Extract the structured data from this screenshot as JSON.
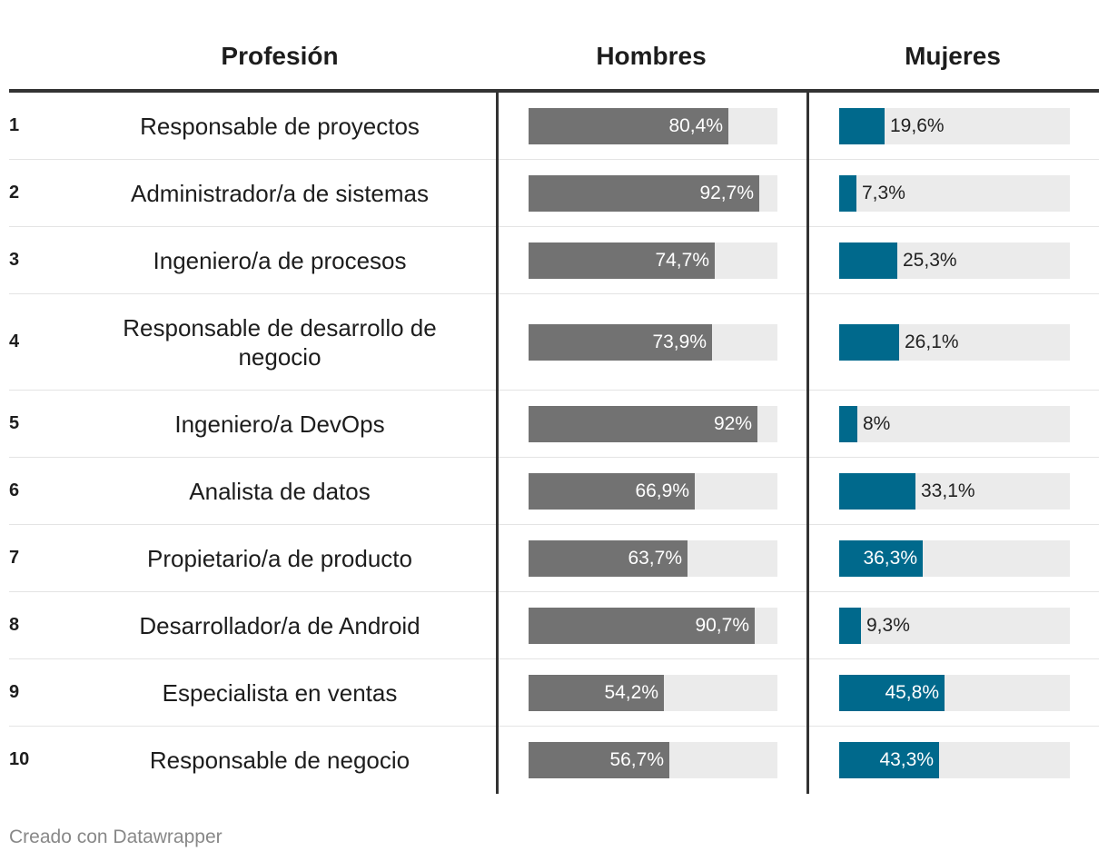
{
  "header": {
    "profession": "Profesión",
    "men": "Hombres",
    "women": "Mujeres"
  },
  "rows": [
    {
      "rank": "1",
      "profession": "Responsable de proyectos",
      "men": "80,4%",
      "women": "19,6%"
    },
    {
      "rank": "2",
      "profession": "Administrador/a de sistemas",
      "men": "92,7%",
      "women": "7,3%"
    },
    {
      "rank": "3",
      "profession": "Ingeniero/a de procesos",
      "men": "74,7%",
      "women": "25,3%"
    },
    {
      "rank": "4",
      "profession": "Responsable de desarrollo de negocio",
      "men": "73,9%",
      "women": "26,1%"
    },
    {
      "rank": "5",
      "profession": "Ingeniero/a DevOps",
      "men": "92%",
      "women": "8%"
    },
    {
      "rank": "6",
      "profession": "Analista de datos",
      "men": "66,9%",
      "women": "33,1%"
    },
    {
      "rank": "7",
      "profession": "Propietario/a de producto",
      "men": "63,7%",
      "women": "36,3%"
    },
    {
      "rank": "8",
      "profession": "Desarrollador/a de Android",
      "men": "90,7%",
      "women": "9,3%"
    },
    {
      "rank": "9",
      "profession": "Especialista en ventas",
      "men": "54,2%",
      "women": "45,8%"
    },
    {
      "rank": "10",
      "profession": "Responsable de negocio",
      "men": "56,7%",
      "women": "43,3%"
    }
  ],
  "chart_data": {
    "type": "table",
    "columns": [
      "",
      "Profesión",
      "Hombres",
      "Mujeres"
    ],
    "categories": [
      "Responsable de proyectos",
      "Administrador/a de sistemas",
      "Ingeniero/a de procesos",
      "Responsable de desarrollo de negocio",
      "Ingeniero/a DevOps",
      "Analista de datos",
      "Propietario/a de producto",
      "Desarrollador/a de Android",
      "Especialista en ventas",
      "Responsable de negocio"
    ],
    "series": [
      {
        "name": "Hombres",
        "values": [
          80.4,
          92.7,
          74.7,
          73.9,
          92,
          66.9,
          63.7,
          90.7,
          54.2,
          56.7
        ]
      },
      {
        "name": "Mujeres",
        "values": [
          19.6,
          7.3,
          25.3,
          26.1,
          8,
          33.1,
          36.3,
          9.3,
          45.8,
          43.3
        ]
      }
    ],
    "scale_max": 100,
    "colors": {
      "men": "#727272",
      "women": "#00698c",
      "track": "#ebebeb"
    }
  },
  "footer": "Creado con Datawrapper"
}
